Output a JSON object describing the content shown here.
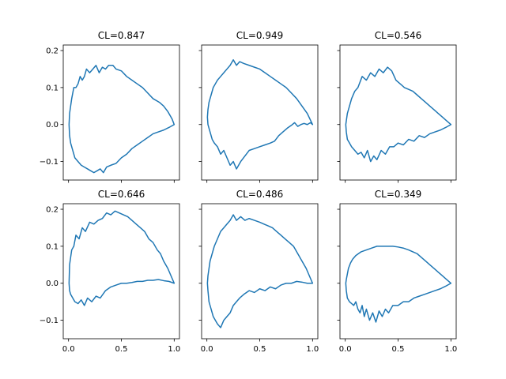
{
  "chart_data": {
    "type": "line",
    "layout": "2x3 grid of subplots, shared x and y axes",
    "xlim": [
      -0.05,
      1.05
    ],
    "ylim": [
      -0.15,
      0.215
    ],
    "xticks": [
      0.0,
      0.5,
      1.0
    ],
    "xtick_labels": [
      "0.0",
      "0.5",
      "1.0"
    ],
    "yticks": [
      -0.1,
      0.0,
      0.1,
      0.2
    ],
    "ytick_labels": [
      "−0.1",
      "0.0",
      "0.1",
      "0.2"
    ],
    "grid": false,
    "line_color": "#1f77b4",
    "subplots": [
      {
        "title": "CL=0.847",
        "x": [
          1.0,
          0.98,
          0.96,
          0.94,
          0.9,
          0.86,
          0.8,
          0.75,
          0.7,
          0.65,
          0.6,
          0.55,
          0.5,
          0.45,
          0.42,
          0.38,
          0.35,
          0.32,
          0.29,
          0.26,
          0.23,
          0.2,
          0.17,
          0.15,
          0.13,
          0.11,
          0.09,
          0.07,
          0.05,
          0.03,
          0.02,
          0.01,
          0.005,
          0.01,
          0.02,
          0.04,
          0.06,
          0.09,
          0.12,
          0.15,
          0.18,
          0.21,
          0.24,
          0.27,
          0.3,
          0.33,
          0.36,
          0.4,
          0.45,
          0.5,
          0.55,
          0.6,
          0.65,
          0.7,
          0.75,
          0.8,
          0.85,
          0.9,
          0.95,
          1.0
        ],
        "y": [
          0.0,
          0.015,
          0.025,
          0.035,
          0.05,
          0.06,
          0.07,
          0.085,
          0.1,
          0.11,
          0.12,
          0.13,
          0.145,
          0.15,
          0.16,
          0.16,
          0.15,
          0.155,
          0.14,
          0.16,
          0.15,
          0.14,
          0.15,
          0.13,
          0.12,
          0.13,
          0.11,
          0.1,
          0.1,
          0.07,
          0.05,
          0.03,
          0.0,
          -0.03,
          -0.05,
          -0.07,
          -0.09,
          -0.1,
          -0.11,
          -0.115,
          -0.12,
          -0.125,
          -0.13,
          -0.125,
          -0.12,
          -0.13,
          -0.115,
          -0.11,
          -0.105,
          -0.09,
          -0.08,
          -0.065,
          -0.055,
          -0.045,
          -0.035,
          -0.025,
          -0.02,
          -0.015,
          -0.008,
          0.0
        ]
      },
      {
        "title": "CL=0.949",
        "x": [
          1.0,
          0.98,
          0.95,
          0.92,
          0.89,
          0.86,
          0.83,
          0.8,
          0.76,
          0.72,
          0.68,
          0.64,
          0.6,
          0.55,
          0.5,
          0.45,
          0.4,
          0.36,
          0.32,
          0.28,
          0.25,
          0.22,
          0.19,
          0.16,
          0.13,
          0.1,
          0.07,
          0.05,
          0.03,
          0.02,
          0.01,
          0.005,
          0.01,
          0.02,
          0.04,
          0.06,
          0.08,
          0.1,
          0.13,
          0.16,
          0.19,
          0.22,
          0.25,
          0.28,
          0.31,
          0.35,
          0.4,
          0.45,
          0.5,
          0.55,
          0.6,
          0.65,
          0.7,
          0.75,
          0.8,
          0.85,
          0.9,
          0.95,
          1.0
        ],
        "y": [
          0.0,
          0.005,
          0.0,
          0.003,
          0.0,
          -0.005,
          0.005,
          -0.002,
          -0.01,
          -0.02,
          -0.03,
          -0.045,
          -0.05,
          -0.055,
          -0.06,
          -0.065,
          -0.07,
          -0.085,
          -0.1,
          -0.12,
          -0.1,
          -0.11,
          -0.09,
          -0.07,
          -0.08,
          -0.06,
          -0.05,
          -0.04,
          -0.02,
          -0.01,
          0.0,
          0.02,
          0.04,
          0.06,
          0.08,
          0.1,
          0.11,
          0.12,
          0.13,
          0.14,
          0.15,
          0.16,
          0.175,
          0.16,
          0.17,
          0.165,
          0.16,
          0.155,
          0.15,
          0.14,
          0.13,
          0.12,
          0.11,
          0.1,
          0.085,
          0.07,
          0.05,
          0.03,
          0.0
        ]
      },
      {
        "title": "CL=0.546",
        "x": [
          1.0,
          0.96,
          0.92,
          0.88,
          0.84,
          0.8,
          0.76,
          0.72,
          0.68,
          0.64,
          0.6,
          0.56,
          0.52,
          0.48,
          0.44,
          0.4,
          0.36,
          0.32,
          0.28,
          0.24,
          0.2,
          0.16,
          0.12,
          0.09,
          0.06,
          0.04,
          0.02,
          0.01,
          0.005,
          0.01,
          0.02,
          0.04,
          0.06,
          0.09,
          0.12,
          0.15,
          0.18,
          0.21,
          0.24,
          0.27,
          0.3,
          0.34,
          0.38,
          0.42,
          0.46,
          0.5,
          0.55,
          0.6,
          0.65,
          0.7,
          0.75,
          0.8,
          0.85,
          0.9,
          0.95,
          1.0
        ],
        "y": [
          0.0,
          0.01,
          0.02,
          0.03,
          0.04,
          0.05,
          0.06,
          0.07,
          0.08,
          0.09,
          0.095,
          0.1,
          0.11,
          0.12,
          0.145,
          0.155,
          0.14,
          0.15,
          0.13,
          0.14,
          0.12,
          0.13,
          0.1,
          0.09,
          0.07,
          0.05,
          0.03,
          0.01,
          0.0,
          -0.02,
          -0.04,
          -0.05,
          -0.06,
          -0.07,
          -0.08,
          -0.075,
          -0.09,
          -0.07,
          -0.1,
          -0.085,
          -0.095,
          -0.07,
          -0.08,
          -0.06,
          -0.06,
          -0.05,
          -0.055,
          -0.04,
          -0.045,
          -0.03,
          -0.035,
          -0.025,
          -0.02,
          -0.015,
          -0.008,
          0.0
        ]
      },
      {
        "title": "CL=0.646",
        "x": [
          1.0,
          0.97,
          0.94,
          0.9,
          0.87,
          0.84,
          0.8,
          0.76,
          0.72,
          0.68,
          0.64,
          0.6,
          0.56,
          0.52,
          0.48,
          0.44,
          0.4,
          0.36,
          0.32,
          0.28,
          0.24,
          0.2,
          0.16,
          0.13,
          0.1,
          0.07,
          0.05,
          0.03,
          0.02,
          0.01,
          0.005,
          0.01,
          0.02,
          0.04,
          0.06,
          0.09,
          0.12,
          0.15,
          0.18,
          0.22,
          0.26,
          0.3,
          0.35,
          0.4,
          0.45,
          0.5,
          0.55,
          0.6,
          0.65,
          0.7,
          0.75,
          0.8,
          0.85,
          0.9,
          0.95,
          1.0
        ],
        "y": [
          0.0,
          0.02,
          0.04,
          0.06,
          0.08,
          0.09,
          0.11,
          0.12,
          0.14,
          0.15,
          0.16,
          0.17,
          0.18,
          0.185,
          0.19,
          0.195,
          0.185,
          0.19,
          0.175,
          0.17,
          0.16,
          0.165,
          0.14,
          0.15,
          0.12,
          0.13,
          0.1,
          0.09,
          0.07,
          0.05,
          0.0,
          -0.02,
          -0.03,
          -0.04,
          -0.05,
          -0.055,
          -0.045,
          -0.06,
          -0.04,
          -0.05,
          -0.035,
          -0.04,
          -0.02,
          -0.01,
          -0.005,
          0.0,
          0.0,
          0.002,
          0.005,
          0.005,
          0.008,
          0.008,
          0.01,
          0.007,
          0.005,
          0.0
        ]
      },
      {
        "title": "CL=0.486",
        "x": [
          1.0,
          0.97,
          0.94,
          0.9,
          0.86,
          0.82,
          0.78,
          0.74,
          0.7,
          0.66,
          0.62,
          0.58,
          0.54,
          0.5,
          0.45,
          0.4,
          0.36,
          0.32,
          0.28,
          0.25,
          0.22,
          0.19,
          0.16,
          0.13,
          0.1,
          0.07,
          0.05,
          0.03,
          0.02,
          0.01,
          0.005,
          0.01,
          0.02,
          0.04,
          0.06,
          0.08,
          0.1,
          0.13,
          0.16,
          0.19,
          0.22,
          0.25,
          0.28,
          0.31,
          0.35,
          0.4,
          0.45,
          0.5,
          0.55,
          0.6,
          0.65,
          0.7,
          0.75,
          0.8,
          0.85,
          0.9,
          0.95,
          1.0
        ],
        "y": [
          0.0,
          0.02,
          0.04,
          0.06,
          0.08,
          0.1,
          0.11,
          0.12,
          0.13,
          0.14,
          0.15,
          0.155,
          0.16,
          0.165,
          0.17,
          0.175,
          0.17,
          0.18,
          0.17,
          0.185,
          0.17,
          0.16,
          0.15,
          0.14,
          0.12,
          0.1,
          0.08,
          0.06,
          0.04,
          0.02,
          0.0,
          -0.02,
          -0.05,
          -0.07,
          -0.09,
          -0.1,
          -0.11,
          -0.12,
          -0.1,
          -0.09,
          -0.08,
          -0.06,
          -0.05,
          -0.04,
          -0.03,
          -0.02,
          -0.025,
          -0.015,
          -0.02,
          -0.01,
          -0.015,
          -0.005,
          0.0,
          0.0,
          0.005,
          0.003,
          0.0,
          0.0
        ]
      },
      {
        "title": "CL=0.349",
        "x": [
          1.0,
          0.96,
          0.92,
          0.88,
          0.84,
          0.8,
          0.76,
          0.72,
          0.68,
          0.64,
          0.6,
          0.55,
          0.5,
          0.45,
          0.4,
          0.35,
          0.3,
          0.25,
          0.2,
          0.15,
          0.1,
          0.07,
          0.05,
          0.03,
          0.02,
          0.01,
          0.005,
          0.01,
          0.02,
          0.04,
          0.06,
          0.08,
          0.1,
          0.12,
          0.14,
          0.16,
          0.18,
          0.2,
          0.23,
          0.26,
          0.29,
          0.32,
          0.35,
          0.38,
          0.41,
          0.45,
          0.5,
          0.55,
          0.6,
          0.65,
          0.7,
          0.75,
          0.8,
          0.85,
          0.9,
          0.95,
          1.0
        ],
        "y": [
          0.0,
          0.01,
          0.02,
          0.03,
          0.04,
          0.05,
          0.06,
          0.07,
          0.08,
          0.085,
          0.09,
          0.095,
          0.098,
          0.1,
          0.1,
          0.1,
          0.1,
          0.095,
          0.09,
          0.085,
          0.075,
          0.065,
          0.055,
          0.04,
          0.025,
          0.01,
          0.0,
          -0.02,
          -0.04,
          -0.05,
          -0.055,
          -0.06,
          -0.05,
          -0.07,
          -0.08,
          -0.06,
          -0.09,
          -0.07,
          -0.1,
          -0.08,
          -0.105,
          -0.075,
          -0.09,
          -0.07,
          -0.08,
          -0.06,
          -0.06,
          -0.05,
          -0.05,
          -0.04,
          -0.035,
          -0.03,
          -0.025,
          -0.02,
          -0.015,
          -0.008,
          0.0
        ]
      }
    ]
  }
}
